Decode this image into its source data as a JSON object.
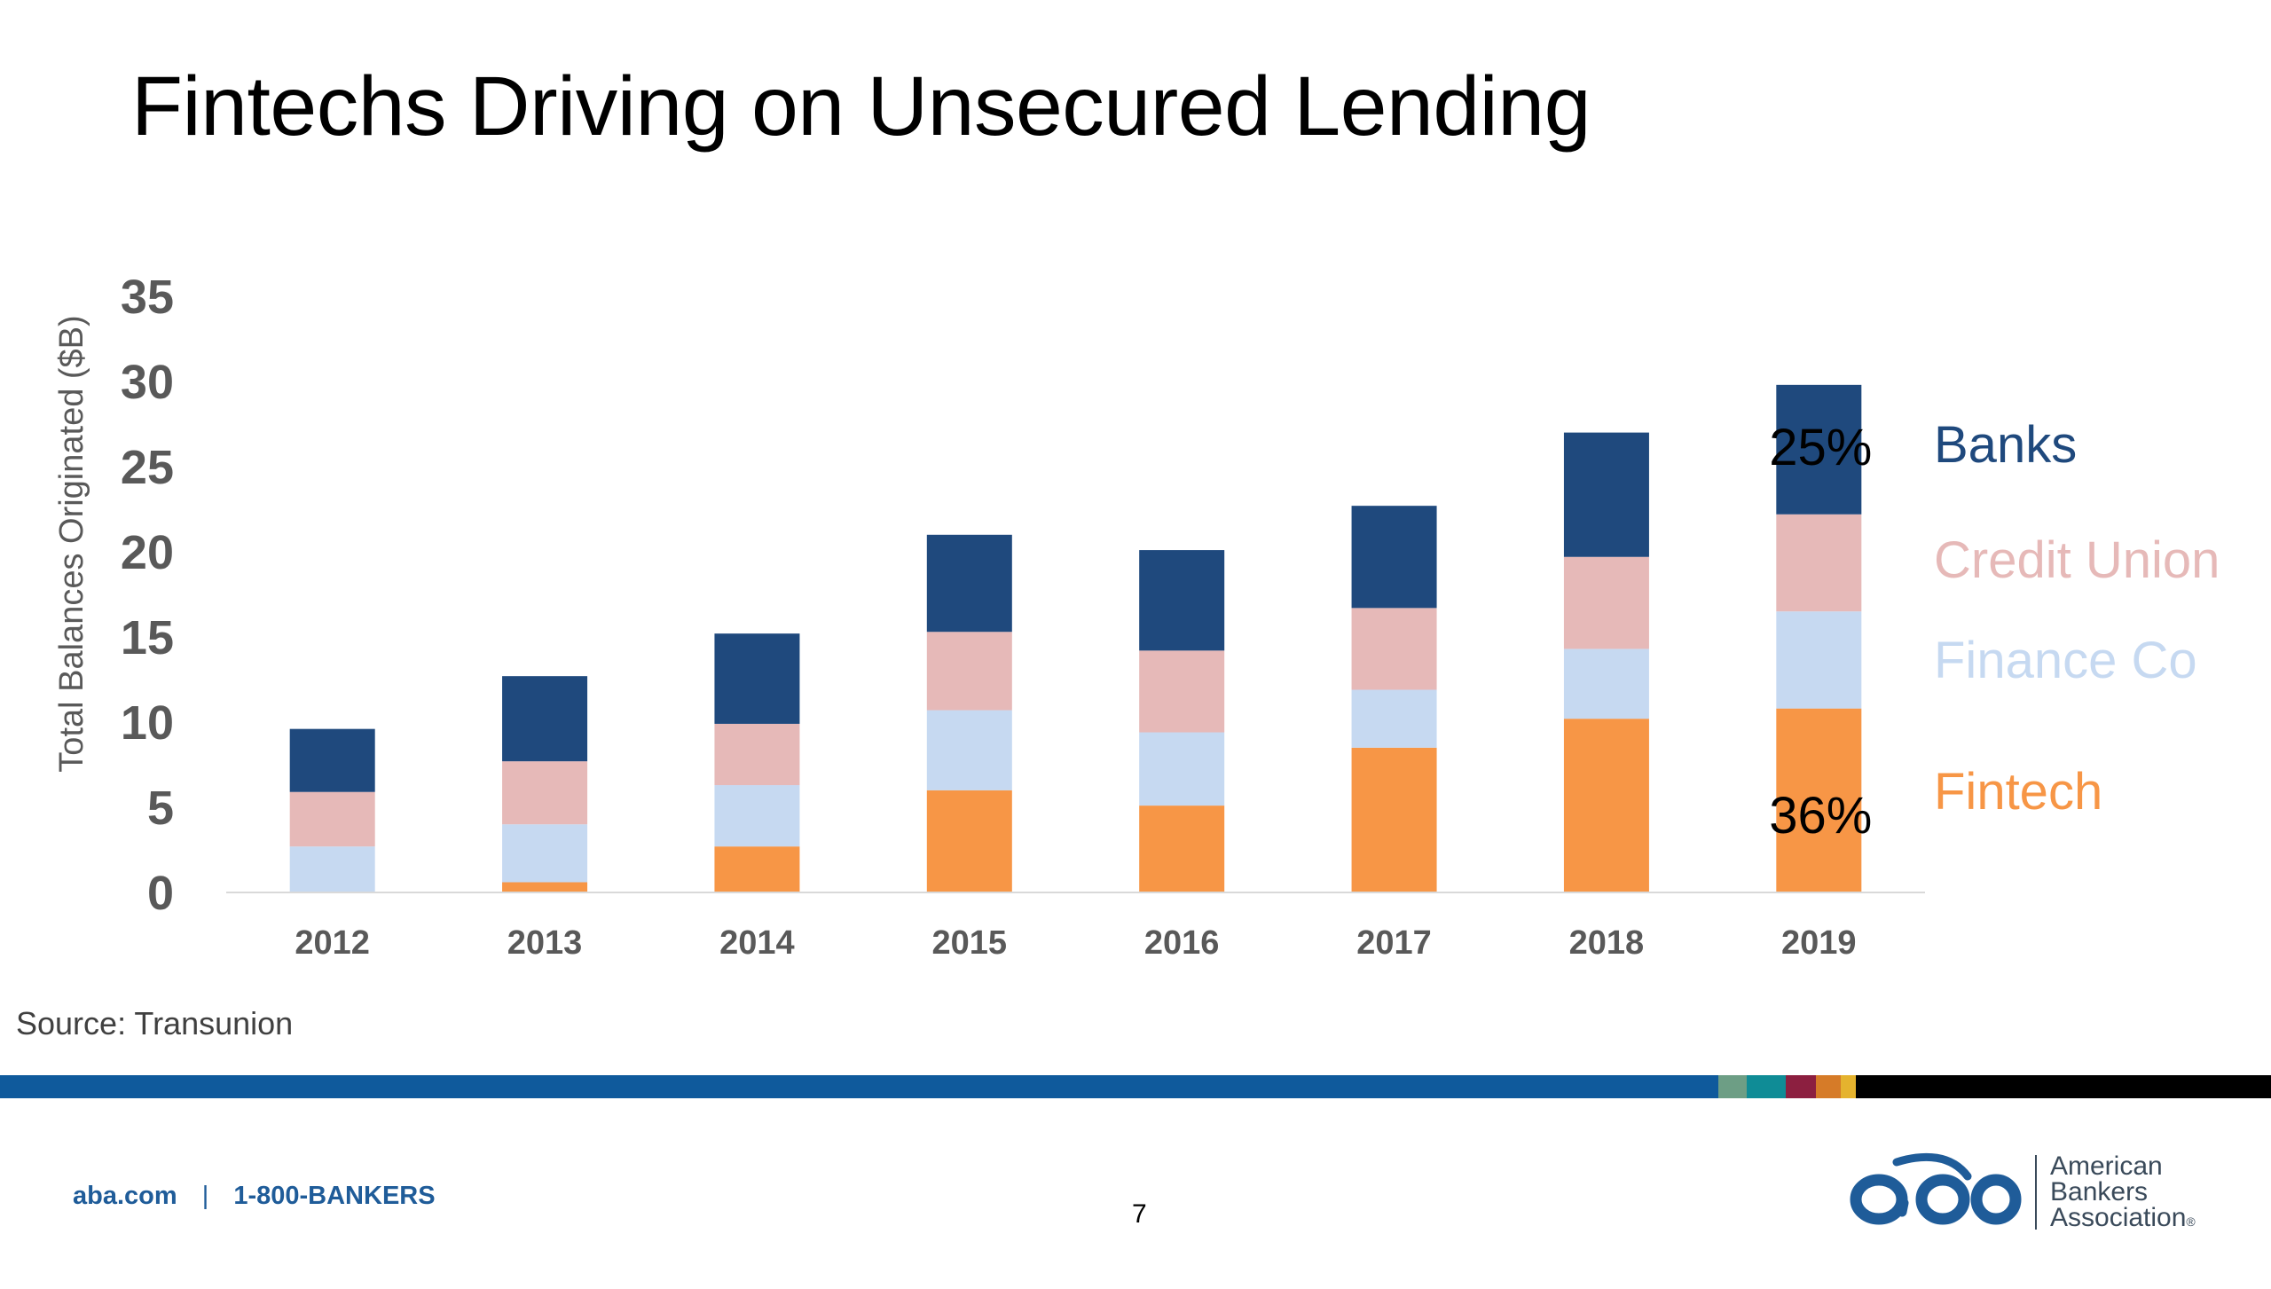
{
  "slide": {
    "title": "Fintechs Driving on Unsecured Lending",
    "source": "Source: Transunion",
    "page_number": "7"
  },
  "footer": {
    "website": "aba.com",
    "separator": "|",
    "phone": "1-800-BANKERS",
    "org_name": [
      "American",
      "Bankers",
      "Association"
    ],
    "registered_mark": "®",
    "logo_text": "aba"
  },
  "colors": {
    "banks": "#1F497D",
    "credit_union": "#E6B9B8",
    "finance_co": "#C6D9F1",
    "fintech": "#F79646",
    "axis_text": "#595959",
    "footer_blue": "#1F5C99",
    "stripe": [
      "#0F5A9C",
      "#6D9E85",
      "#0F8C96",
      "#8C1F40",
      "#D67B28",
      "#E5B32E",
      "#000000"
    ]
  },
  "chart_data": {
    "type": "bar",
    "stacked": true,
    "categories": [
      "2012",
      "2013",
      "2014",
      "2015",
      "2016",
      "2017",
      "2018",
      "2019"
    ],
    "series": [
      {
        "name": "Fintech",
        "color": "#F79646",
        "values": [
          0,
          0.6,
          2.7,
          6.0,
          5.1,
          8.5,
          10.2,
          10.8
        ]
      },
      {
        "name": "Finance Co",
        "color": "#C6D9F1",
        "values": [
          2.7,
          3.4,
          3.6,
          4.7,
          4.3,
          3.4,
          4.1,
          5.7
        ]
      },
      {
        "name": "Credit Union",
        "color": "#E6B9B8",
        "values": [
          3.2,
          3.7,
          3.6,
          4.6,
          4.8,
          4.8,
          5.4,
          5.7
        ]
      },
      {
        "name": "Banks",
        "color": "#1F497D",
        "values": [
          3.7,
          5.0,
          5.3,
          5.7,
          5.9,
          6.0,
          7.3,
          7.6
        ]
      }
    ],
    "title": "",
    "xlabel": "",
    "ylabel": "Total Balances Originated ($B)",
    "ylim": [
      0,
      35
    ],
    "yticks": [
      "0",
      "5",
      "10",
      "15",
      "20",
      "25",
      "30",
      "35"
    ],
    "grid": false,
    "legend": "right",
    "annotations": [
      {
        "text": "25%",
        "series": "Banks",
        "category": "2019"
      },
      {
        "text": "36%",
        "series": "Fintech",
        "category": "2019"
      }
    ]
  }
}
